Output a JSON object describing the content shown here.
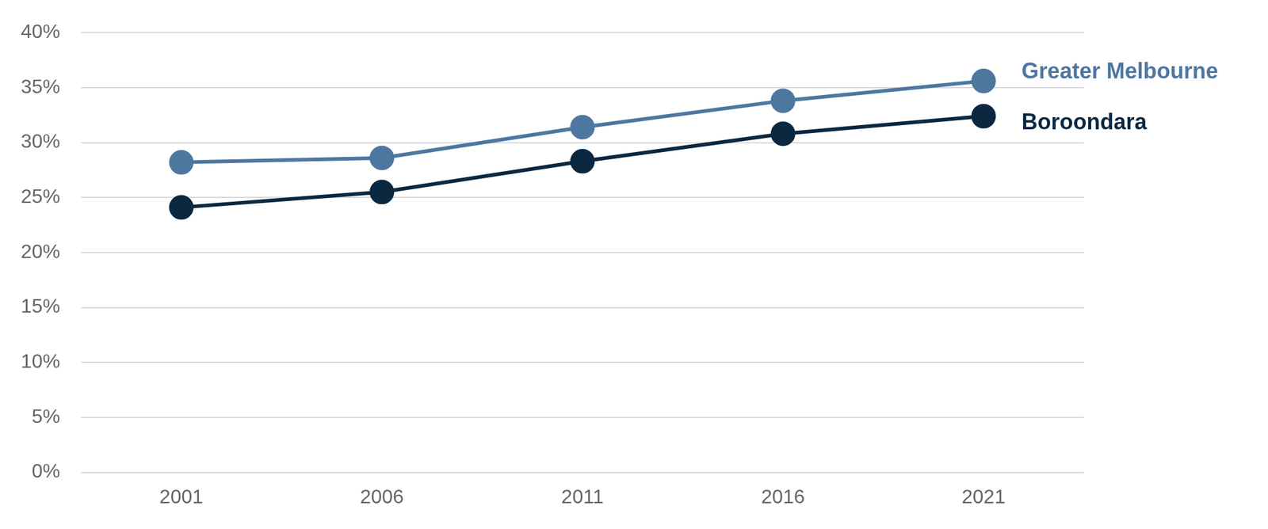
{
  "chart_data": {
    "type": "line",
    "categories": [
      "2001",
      "2006",
      "2011",
      "2016",
      "2021"
    ],
    "series": [
      {
        "name": "Greater Melbourne",
        "color": "#4e77a0",
        "values": [
          28.2,
          28.6,
          31.4,
          33.8,
          35.6
        ]
      },
      {
        "name": "Boroondara",
        "color": "#0b2840",
        "values": [
          24.1,
          25.5,
          28.3,
          30.8,
          32.4
        ]
      }
    ],
    "ylim": [
      0,
      40
    ],
    "yticks": [
      {
        "value": 0,
        "label": "0%"
      },
      {
        "value": 5,
        "label": "5%"
      },
      {
        "value": 10,
        "label": "10%"
      },
      {
        "value": 15,
        "label": "15%"
      },
      {
        "value": 20,
        "label": "20%"
      },
      {
        "value": 25,
        "label": "25%"
      },
      {
        "value": 30,
        "label": "30%"
      },
      {
        "value": 35,
        "label": "35%"
      },
      {
        "value": 40,
        "label": "40%"
      }
    ],
    "grid": true,
    "marker": "circle",
    "line_style": "solid"
  }
}
